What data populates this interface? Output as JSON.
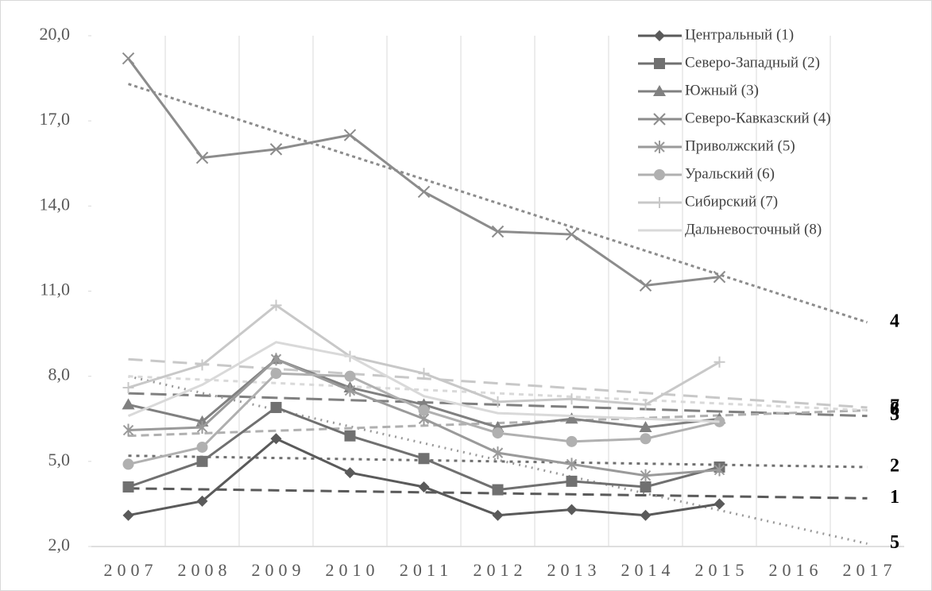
{
  "chart_data": {
    "type": "line",
    "categories": [
      "2007",
      "2008",
      "2009",
      "2010",
      "2011",
      "2012",
      "2013",
      "2014",
      "2015",
      "2016",
      "2017"
    ],
    "ylim": [
      2,
      20
    ],
    "yticks": [
      {
        "value": 2,
        "label": "2,0"
      },
      {
        "value": 5,
        "label": "5,0"
      },
      {
        "value": 8,
        "label": "8,0"
      },
      {
        "value": 11,
        "label": "11,0"
      },
      {
        "value": 14,
        "label": "14,0"
      },
      {
        "value": 17,
        "label": "17,0"
      },
      {
        "value": 20,
        "label": "20,0"
      }
    ],
    "grid": "vertical",
    "legend": "top-right",
    "series": [
      {
        "name": "Центральный (1)",
        "color": "#5a5a5a",
        "marker": "diamond",
        "values": [
          3.1,
          3.6,
          5.8,
          4.6,
          4.1,
          3.1,
          3.3,
          3.1,
          3.5,
          null,
          null
        ],
        "trend": [
          4.05,
          3.7
        ],
        "trend_label": "1"
      },
      {
        "name": "Северо-Западный (2)",
        "color": "#707070",
        "marker": "square",
        "values": [
          4.1,
          5.0,
          6.9,
          5.9,
          5.1,
          4.0,
          4.3,
          4.1,
          4.8,
          null,
          null
        ],
        "trend": [
          5.2,
          4.8
        ],
        "trend_label": "2"
      },
      {
        "name": "Южный (3)",
        "color": "#808080",
        "marker": "triangle",
        "values": [
          7.0,
          6.4,
          8.6,
          7.6,
          7.0,
          6.2,
          6.5,
          6.2,
          6.5,
          null,
          null
        ],
        "trend": [
          7.4,
          6.6
        ],
        "trend_label": "3"
      },
      {
        "name": "Северо-Кавказский (4)",
        "color": "#8c8c8c",
        "marker": "x",
        "values": [
          19.2,
          15.7,
          16.0,
          16.5,
          14.5,
          13.1,
          13.0,
          11.2,
          11.5,
          null,
          null
        ],
        "trend": [
          18.3,
          9.9
        ],
        "trend_label": "4"
      },
      {
        "name": "Приволжский (5)",
        "color": "#9a9a9a",
        "marker": "star",
        "values": [
          6.1,
          6.2,
          8.6,
          7.5,
          6.5,
          5.3,
          4.9,
          4.5,
          4.7,
          null,
          null
        ],
        "trend": [
          8.0,
          2.1
        ],
        "trend_label": "5"
      },
      {
        "name": "Уральский (6)",
        "color": "#b0b0b0",
        "marker": "circle",
        "values": [
          4.9,
          5.5,
          8.1,
          8.0,
          6.8,
          6.0,
          5.7,
          5.8,
          6.4,
          null,
          null
        ],
        "trend": [
          5.9,
          6.8
        ],
        "trend_label": "6"
      },
      {
        "name": "Сибирский (7)",
        "color": "#c8c8c8",
        "marker": "plus",
        "values": [
          7.6,
          8.4,
          10.5,
          8.7,
          8.1,
          7.1,
          7.2,
          7.0,
          8.5,
          null,
          null
        ],
        "trend": [
          8.6,
          6.9
        ],
        "trend_label": "7"
      },
      {
        "name": "Дальневосточный (8)",
        "color": "#d9d9d9",
        "marker": "none",
        "values": [
          6.6,
          7.7,
          9.2,
          8.7,
          7.3,
          6.7,
          6.6,
          6.5,
          6.4,
          null,
          null
        ],
        "trend": [
          8.0,
          6.8
        ],
        "trend_label": "8"
      }
    ]
  }
}
